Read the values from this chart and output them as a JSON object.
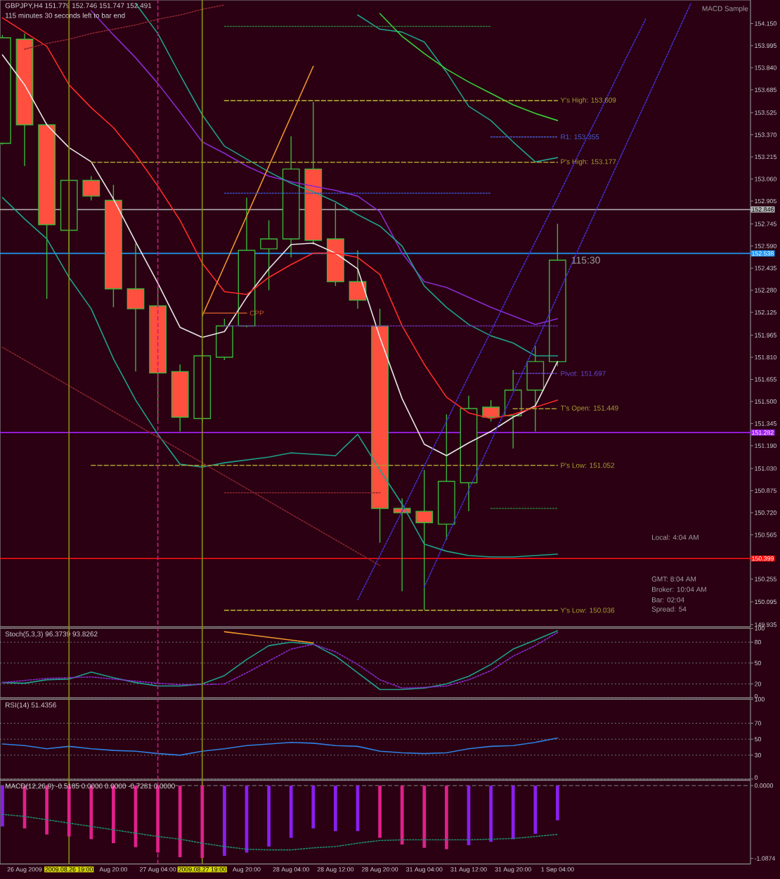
{
  "chart_data": [
    {
      "type": "candlestick",
      "title": "GBPJPY,H4  151.779 152.746 151.747 152.491",
      "subtitle": "115 minutes 30 seconds left to bar end",
      "categories": [
        null,
        null,
        null,
        null,
        null,
        null,
        null,
        null,
        null,
        null,
        null,
        null,
        null,
        null,
        null,
        null,
        null,
        null,
        null,
        null,
        null,
        null,
        null,
        null,
        null,
        null,
        null,
        null,
        null,
        null,
        null,
        null,
        null,
        null
      ],
      "ohlc": [
        [
          153.31,
          154.07,
          153.3,
          154.05
        ],
        [
          154.04,
          154.08,
          153.15,
          153.44
        ],
        [
          153.44,
          153.45,
          152.22,
          152.74
        ],
        [
          152.7,
          153.27,
          152.54,
          153.05
        ],
        [
          153.05,
          153.08,
          152.91,
          152.94
        ],
        [
          152.91,
          153.02,
          152.16,
          152.29
        ],
        [
          152.29,
          152.61,
          151.71,
          152.15
        ],
        [
          152.17,
          152.3,
          151.36,
          151.7
        ],
        [
          151.71,
          151.76,
          151.29,
          151.39
        ],
        [
          151.38,
          151.86,
          151.35,
          151.82
        ],
        [
          151.81,
          152.08,
          151.79,
          152.03
        ],
        [
          152.03,
          152.93,
          152.02,
          152.56
        ],
        [
          152.57,
          152.77,
          152.28,
          152.64
        ],
        [
          152.64,
          153.36,
          152.51,
          153.13
        ],
        [
          153.13,
          153.6,
          152.6,
          152.63
        ],
        [
          152.64,
          152.89,
          152.31,
          152.34
        ],
        [
          152.34,
          152.56,
          152.15,
          152.21
        ],
        [
          152.03,
          152.15,
          150.51,
          150.75
        ],
        [
          150.75,
          150.82,
          150.17,
          150.72
        ],
        [
          150.73,
          151.02,
          150.04,
          150.65
        ],
        [
          150.64,
          151.41,
          150.53,
          150.94
        ],
        [
          150.93,
          151.54,
          150.73,
          151.45
        ],
        [
          151.46,
          151.51,
          151.36,
          151.39
        ],
        [
          151.4,
          151.72,
          151.17,
          151.58
        ],
        [
          151.58,
          151.89,
          151.29,
          151.78
        ],
        [
          151.779,
          152.746,
          151.747,
          152.491
        ],
        null,
        null,
        null,
        null,
        null,
        null,
        null,
        null
      ],
      "color": "#3cb43c",
      "colors": [
        "#2a0012",
        "#ff4f3f",
        "#ff4f3f",
        "#2a0012",
        "#ff4f3f",
        "#ff4f3f",
        "#ff4f3f",
        "#ff4f3f",
        "#ff4f3f",
        "#2a0012",
        "#2a0012",
        "#2a0012",
        "#2a0012",
        "#2a0012",
        "#ff4f3f",
        "#ff4f3f",
        "#ff4f3f",
        "#ff4f3f",
        "#ff4f3f",
        "#ff4f3f",
        "#2a0012",
        "#2a0012",
        "#ff4f3f",
        "#2a0012",
        "#2a0012",
        "#2a0012",
        null,
        null,
        null,
        null,
        null,
        null,
        null,
        null
      ],
      "series": [
        {
          "type": "line",
          "color": "#e8e8e8",
          "values": [
            153.93,
            153.72,
            153.44,
            153.28,
            153.18,
            152.92,
            152.62,
            152.33,
            152.02,
            151.95,
            151.99,
            152.23,
            152.43,
            152.6,
            152.61,
            152.54,
            152.43,
            151.95,
            151.52,
            151.2,
            151.12,
            151.21,
            151.29,
            151.39,
            151.47,
            151.78,
            null,
            null,
            null,
            null,
            null,
            null,
            null,
            null
          ]
        },
        {
          "type": "line",
          "color": "#ff2a2a",
          "values": [
            154.19,
            154.09,
            153.99,
            153.72,
            153.56,
            153.42,
            153.23,
            153.01,
            152.77,
            152.47,
            152.27,
            152.25,
            152.37,
            152.46,
            152.54,
            152.54,
            152.51,
            152.39,
            152.03,
            151.76,
            151.53,
            151.42,
            151.38,
            151.41,
            151.46,
            151.51,
            null,
            null,
            null,
            null,
            null,
            null,
            null,
            null
          ]
        },
        {
          "type": "line",
          "color": "#8a2ad0",
          "values": [
            null,
            null,
            null,
            null,
            154.24,
            154.07,
            153.91,
            153.73,
            153.53,
            153.32,
            153.24,
            153.15,
            153.08,
            153.04,
            153.01,
            152.98,
            152.94,
            152.83,
            152.54,
            152.34,
            152.3,
            152.23,
            152.16,
            152.1,
            152.04,
            152.08,
            null,
            null,
            null,
            null,
            null,
            null,
            null,
            null
          ]
        },
        {
          "type": "line",
          "color": "#1fa08c",
          "values": [
            null,
            null,
            null,
            null,
            null,
            null,
            null,
            null,
            null,
            null,
            null,
            null,
            null,
            null,
            null,
            null,
            154.21,
            154.11,
            154.09,
            154.02,
            153.81,
            153.57,
            153.47,
            153.32,
            153.18,
            153.21,
            null,
            null,
            null,
            null,
            null,
            null,
            null,
            null
          ]
        },
        {
          "type": "line",
          "color": "#1fa08c",
          "values": [
            null,
            null,
            null,
            null,
            null,
            null,
            154.29,
            154.08,
            153.79,
            153.51,
            153.29,
            153.2,
            153.11,
            153.03,
            152.97,
            152.9,
            152.81,
            152.73,
            152.59,
            152.31,
            152.16,
            152.04,
            151.96,
            151.91,
            151.82,
            151.82,
            null,
            null,
            null,
            null,
            null,
            null,
            null,
            null
          ]
        },
        {
          "type": "line",
          "color": "#1fa08c",
          "values": [
            152.93,
            152.78,
            152.64,
            152.37,
            152.15,
            151.8,
            151.51,
            151.27,
            151.06,
            151.04,
            151.07,
            151.09,
            151.11,
            151.14,
            151.13,
            151.12,
            151.27,
            151.02,
            150.78,
            150.5,
            150.45,
            150.42,
            150.41,
            150.41,
            150.42,
            150.43,
            null,
            null,
            null,
            null,
            null,
            null,
            null,
            null
          ]
        },
        {
          "type": "line",
          "color": "#3ad03a",
          "values": [
            null,
            null,
            null,
            null,
            null,
            null,
            null,
            null,
            null,
            null,
            null,
            null,
            null,
            null,
            null,
            null,
            null,
            154.22,
            154.06,
            153.94,
            153.83,
            153.74,
            153.66,
            153.58,
            153.52,
            153.47,
            null,
            null,
            null,
            null,
            null,
            null,
            null,
            null
          ]
        },
        {
          "type": "line",
          "color": "#f0962a",
          "values": [
            null,
            null,
            null,
            null,
            null,
            null,
            null,
            null,
            null,
            152.1,
            152.45,
            152.8,
            153.15,
            153.5,
            153.85,
            null,
            null,
            null,
            null,
            null,
            null,
            null,
            null,
            null,
            null,
            null,
            null,
            null,
            null,
            null,
            null,
            null,
            null,
            null
          ]
        },
        {
          "type": "line",
          "name": "Y's High: 153.609",
          "color": "#a89c30",
          "line_style": "dashed",
          "values": [
            null,
            null,
            null,
            null,
            null,
            null,
            null,
            null,
            null,
            null,
            153.609,
            153.609,
            153.609,
            153.609,
            153.609,
            153.609,
            153.609,
            153.609,
            153.609,
            153.609,
            153.609,
            153.609,
            153.609,
            153.609,
            153.609,
            153.609,
            null,
            null,
            null,
            null,
            null,
            null,
            null,
            null
          ]
        },
        {
          "type": "line",
          "name": "R1: 153.355",
          "color": "#4a5ed0",
          "line_style": "dotted",
          "values": [
            null,
            null,
            null,
            null,
            null,
            null,
            null,
            null,
            null,
            null,
            null,
            null,
            null,
            null,
            null,
            null,
            null,
            null,
            null,
            null,
            null,
            null,
            153.355,
            153.355,
            153.355,
            153.355,
            null,
            null,
            null,
            null,
            null,
            null,
            null,
            null
          ]
        },
        {
          "type": "line",
          "name": "P's High: 153.177",
          "color": "#a89c30",
          "line_style": "dashed",
          "values": [
            null,
            null,
            null,
            null,
            153.177,
            153.177,
            153.177,
            153.177,
            153.177,
            153.177,
            153.177,
            153.177,
            153.177,
            153.177,
            153.177,
            153.177,
            153.177,
            153.177,
            153.177,
            153.177,
            153.177,
            153.177,
            153.177,
            153.177,
            153.177,
            153.177,
            null,
            null,
            null,
            null,
            null,
            null,
            null,
            null
          ]
        },
        {
          "type": "line",
          "name": "Pivot: 151.697",
          "color": "#6a46d8",
          "line_style": "dotted",
          "values": [
            null,
            null,
            null,
            null,
            null,
            null,
            null,
            null,
            null,
            null,
            null,
            null,
            null,
            null,
            null,
            null,
            null,
            null,
            null,
            null,
            null,
            null,
            null,
            151.697,
            151.697,
            151.697,
            null,
            null,
            null,
            null,
            null,
            null,
            null,
            null
          ]
        },
        {
          "type": "line",
          "name": "T's Open: 151.449",
          "color": "#a89c30",
          "line_style": "dashed",
          "values": [
            null,
            null,
            null,
            null,
            null,
            null,
            null,
            null,
            null,
            null,
            null,
            null,
            null,
            null,
            null,
            null,
            null,
            null,
            null,
            null,
            null,
            null,
            null,
            151.449,
            151.449,
            151.449,
            null,
            null,
            null,
            null,
            null,
            null,
            null,
            null
          ]
        },
        {
          "type": "line",
          "name": "P's Low: 151.052",
          "color": "#a89c30",
          "line_style": "dashed",
          "values": [
            null,
            null,
            null,
            null,
            151.052,
            151.052,
            151.052,
            151.052,
            151.052,
            151.052,
            151.052,
            151.052,
            151.052,
            151.052,
            151.052,
            151.052,
            151.052,
            151.052,
            151.052,
            151.052,
            151.052,
            151.052,
            151.052,
            151.052,
            151.052,
            151.052,
            null,
            null,
            null,
            null,
            null,
            null,
            null,
            null
          ]
        },
        {
          "type": "line",
          "name": "Y's Low: 150.036",
          "color": "#a89c30",
          "line_style": "dashed",
          "values": [
            null,
            null,
            null,
            null,
            null,
            null,
            null,
            null,
            null,
            null,
            150.036,
            150.036,
            150.036,
            150.036,
            150.036,
            150.036,
            150.036,
            150.036,
            150.036,
            150.036,
            150.036,
            150.036,
            150.036,
            150.036,
            150.036,
            150.036,
            null,
            null,
            null,
            null,
            null,
            null,
            null,
            null
          ]
        },
        {
          "type": "line",
          "name": "CPP",
          "color": "#c0542a",
          "values": [
            null,
            null,
            null,
            null,
            null,
            null,
            null,
            null,
            null,
            152.12,
            152.12,
            152.12,
            null,
            null,
            null,
            null,
            null,
            null,
            null,
            null,
            null,
            null,
            null,
            null,
            null,
            null,
            null,
            null,
            null,
            null,
            null,
            null,
            null,
            null
          ]
        },
        {
          "type": "line",
          "color": "#2a7a3a",
          "line_style": "dotted",
          "values": [
            null,
            null,
            null,
            null,
            null,
            null,
            null,
            null,
            null,
            null,
            154.13,
            154.13,
            154.13,
            154.13,
            154.13,
            154.13,
            154.13,
            154.13,
            154.13,
            154.13,
            154.13,
            154.13,
            154.13,
            null,
            null,
            null,
            null,
            null,
            null,
            null,
            null,
            null,
            null,
            null
          ]
        },
        {
          "type": "line",
          "color": "#3a4ec0",
          "line_style": "dotted",
          "values": [
            null,
            null,
            null,
            null,
            null,
            null,
            null,
            null,
            null,
            null,
            152.96,
            152.96,
            152.96,
            152.96,
            152.96,
            152.96,
            152.96,
            152.96,
            152.96,
            152.96,
            152.96,
            152.96,
            152.96,
            null,
            null,
            null,
            null,
            null,
            null,
            null,
            null,
            null,
            null,
            null
          ]
        },
        {
          "type": "line",
          "color": "#6a30b0",
          "line_style": "dotted",
          "values": [
            null,
            null,
            null,
            null,
            null,
            null,
            null,
            null,
            null,
            null,
            152.03,
            152.03,
            152.03,
            152.03,
            152.03,
            152.03,
            152.03,
            152.03,
            152.03,
            152.03,
            152.03,
            152.03,
            152.03,
            152.03,
            152.03,
            152.03,
            null,
            null,
            null,
            null,
            null,
            null,
            null,
            null
          ]
        },
        {
          "type": "line",
          "color": "#2a7a3a",
          "line_style": "dotted",
          "values": [
            null,
            null,
            null,
            null,
            null,
            null,
            null,
            null,
            null,
            null,
            null,
            null,
            null,
            null,
            null,
            null,
            null,
            null,
            null,
            null,
            null,
            null,
            150.75,
            150.75,
            150.75,
            150.75,
            null,
            null,
            null,
            null,
            null,
            null,
            null,
            null
          ]
        },
        {
          "type": "line",
          "color": "#8a2430",
          "line_style": "dotted",
          "values": [
            null,
            null,
            null,
            null,
            null,
            null,
            null,
            null,
            null,
            null,
            150.86,
            150.86,
            150.86,
            150.86,
            150.86,
            150.86,
            150.86,
            150.86,
            null,
            null,
            null,
            null,
            null,
            null,
            null,
            null,
            null,
            null,
            null,
            null,
            null,
            null,
            null,
            null
          ]
        },
        {
          "type": "line",
          "color": "#8a2430",
          "line_style": "dotted",
          "values": [
            null,
            153.97,
            154.01,
            154.04,
            154.08,
            154.11,
            154.14,
            154.18,
            154.21,
            154.25,
            154.28,
            null,
            null,
            null,
            null,
            null,
            null,
            null,
            null,
            null,
            null,
            null,
            null,
            null,
            null,
            null,
            null,
            null,
            null,
            null,
            null,
            null,
            null,
            null
          ]
        },
        {
          "type": "line",
          "color": "#8a2430",
          "line_style": "dotted",
          "values": [
            151.88,
            151.79,
            151.7,
            151.61,
            151.52,
            151.43,
            151.34,
            151.25,
            151.16,
            151.07,
            150.98,
            150.89,
            150.8,
            150.71,
            150.62,
            150.53,
            150.44,
            150.35,
            null,
            null,
            null,
            null,
            null,
            null,
            null,
            null,
            null,
            null,
            null,
            null,
            null,
            null,
            null,
            null
          ]
        },
        {
          "type": "line",
          "color": "#4030d8",
          "line_style": "dotted",
          "values": [
            null,
            null,
            null,
            null,
            null,
            null,
            null,
            null,
            null,
            null,
            null,
            null,
            null,
            null,
            null,
            null,
            150.11,
            150.42,
            150.73,
            151.05,
            151.36,
            151.68,
            151.99,
            152.31,
            152.62,
            152.93,
            153.25,
            153.56,
            153.88,
            154.19,
            null,
            null,
            null,
            null
          ]
        },
        {
          "type": "line",
          "color": "#4030d8",
          "line_style": "dotted",
          "values": [
            null,
            null,
            null,
            null,
            null,
            null,
            null,
            null,
            null,
            null,
            null,
            null,
            null,
            null,
            null,
            null,
            null,
            null,
            null,
            150.2,
            150.54,
            150.88,
            151.22,
            151.56,
            151.9,
            152.24,
            152.59,
            152.93,
            153.27,
            153.61,
            153.95,
            154.29,
            null,
            null
          ]
        }
      ],
      "ylim": [
        149.92,
        154.315
      ],
      "yticks": [
        {
          "value": 149.935,
          "label": "149.935"
        },
        {
          "value": 150.095,
          "label": "150.095"
        },
        {
          "value": 150.255,
          "label": "150.255"
        },
        {
          "value": 150.41,
          "label": null
        },
        {
          "value": 150.565,
          "label": "150.565"
        },
        {
          "value": 150.72,
          "label": "150.720"
        },
        {
          "value": 150.875,
          "label": "150.875"
        },
        {
          "value": 151.03,
          "label": "151.030"
        },
        {
          "value": 151.19,
          "label": "151.190"
        },
        {
          "value": 151.345,
          "label": "151.345"
        },
        {
          "value": 151.5,
          "label": "151.500"
        },
        {
          "value": 151.655,
          "label": "151.655"
        },
        {
          "value": 151.81,
          "label": "151.810"
        },
        {
          "value": 151.965,
          "label": "151.965"
        },
        {
          "value": 152.125,
          "label": "152.125"
        },
        {
          "value": 152.28,
          "label": "152.280"
        },
        {
          "value": 152.435,
          "label": "152.435"
        },
        {
          "value": 152.59,
          "label": "152.590"
        },
        {
          "value": 152.745,
          "label": "152.745"
        },
        {
          "value": 152.905,
          "label": "152.905"
        },
        {
          "value": 153.06,
          "label": "153.060"
        },
        {
          "value": 153.215,
          "label": "153.215"
        },
        {
          "value": 153.37,
          "label": "153.370"
        },
        {
          "value": 153.525,
          "label": "153.525"
        },
        {
          "value": 153.685,
          "label": "153.685"
        },
        {
          "value": 153.84,
          "label": "153.840"
        },
        {
          "value": 153.995,
          "label": "153.995"
        },
        {
          "value": 154.15,
          "label": "154.150"
        }
      ],
      "tick_labels": "y",
      "ref_lines": [
        {
          "axis": "y",
          "value": 152.846,
          "label": "152.846",
          "color": "#b4b4b4"
        },
        {
          "axis": "y",
          "value": 152.538,
          "label": "152.538",
          "color": "#2196f3"
        },
        {
          "axis": "y",
          "value": 151.282,
          "label": "151.282",
          "color": "#a020f0"
        },
        {
          "axis": "y",
          "value": 150.399,
          "label": "150.399",
          "color": "#ff1010"
        }
      ],
      "annotations": [
        "MACD Sample",
        "Local: 4:04 AM",
        "GMT: 8:04 AM",
        "Broker: 10:04 AM",
        "Bar: 02:04",
        "Spread: 54",
        {
          "text": "115:30",
          "y": 152.491
        }
      ]
    },
    {
      "type": "line",
      "title": "Stoch(5,3,3) 96.3739 93.8262",
      "categories": [
        null,
        null,
        null,
        null,
        null,
        null,
        null,
        null,
        null,
        null,
        null,
        null,
        null,
        null,
        null,
        null,
        null,
        null,
        null,
        null,
        null,
        null,
        null,
        null,
        null,
        null,
        null,
        null,
        null,
        null,
        null,
        null,
        null,
        null
      ],
      "series": [
        {
          "color": "#1fa08c",
          "values": [
            22,
            21,
            26,
            27,
            37,
            29,
            22,
            17,
            17,
            20,
            32,
            55,
            75,
            80,
            77,
            60,
            36,
            12,
            12,
            14,
            20,
            31,
            48,
            70,
            83,
            96.3739,
            null,
            null,
            null,
            null,
            null,
            null,
            null,
            null
          ]
        },
        {
          "color": "#8a2ad0",
          "line_style": "dotted",
          "values": [
            22,
            25,
            28,
            29,
            30,
            27,
            24,
            21,
            19,
            19,
            20,
            36,
            53,
            70,
            77,
            66,
            48,
            26,
            14,
            15,
            17,
            26,
            39,
            60,
            75,
            93.8262,
            null,
            null,
            null,
            null,
            null,
            null,
            null,
            null
          ]
        },
        {
          "color": "#f0962a",
          "values": [
            null,
            null,
            null,
            null,
            null,
            null,
            null,
            null,
            null,
            null,
            95,
            91,
            87,
            83,
            79,
            null,
            null,
            null,
            null,
            null,
            null,
            null,
            null,
            null,
            null,
            null,
            null,
            null,
            null,
            null,
            null,
            null,
            null,
            null
          ]
        }
      ],
      "ylim": [
        0,
        100
      ],
      "yticks": [
        0,
        20,
        50,
        80,
        100
      ],
      "grid": "y",
      "tick_labels": "y"
    },
    {
      "type": "line",
      "title": "RSI(14) 51.4356",
      "categories": [
        null,
        null,
        null,
        null,
        null,
        null,
        null,
        null,
        null,
        null,
        null,
        null,
        null,
        null,
        null,
        null,
        null,
        null,
        null,
        null,
        null,
        null,
        null,
        null,
        null,
        null,
        null,
        null,
        null,
        null,
        null,
        null,
        null,
        null
      ],
      "series": [
        {
          "color": "#2f7fe0",
          "values": [
            44,
            42,
            38,
            41,
            38,
            36,
            35,
            32,
            30,
            35,
            38,
            42,
            44,
            46,
            45,
            42,
            41,
            35,
            33,
            32,
            33,
            38,
            41,
            42,
            46,
            51.4356,
            null,
            null,
            null,
            null,
            null,
            null,
            null,
            null
          ]
        }
      ],
      "ylim": [
        0,
        100
      ],
      "yticks": [
        0,
        30,
        50,
        70,
        100
      ],
      "grid": "y",
      "tick_labels": "y"
    },
    {
      "type": "bar",
      "title": "MACD(12,26,9) -0.5185 0.0000 0.0000 -0.7281 0.0000",
      "categories": [
        null,
        "26 Aug 2009",
        null,
        "2009.08.26 19:00",
        null,
        "Aug 20:00",
        null,
        "27 Aug 04:00",
        null,
        "2009.08.27 19:00",
        null,
        "Aug 20:00",
        null,
        "28 Aug 04:00",
        null,
        "28 Aug 12:00",
        null,
        "28 Aug 20:00",
        null,
        "31 Aug 04:00",
        null,
        "31 Aug 12:00",
        null,
        "31 Aug 20:00",
        null,
        "1 Sep 04:00",
        null,
        null,
        null,
        null,
        null,
        null,
        null,
        null
      ],
      "series": [
        {
          "type": "bar",
          "values": [
            -0.61,
            -0.64,
            -0.73,
            -0.76,
            -0.8,
            -0.86,
            -0.92,
            -1.0,
            -1.07,
            -1.08,
            -1.05,
            -1.0,
            -0.91,
            -0.78,
            -0.64,
            -0.68,
            -0.68,
            -0.78,
            -0.88,
            -0.93,
            -0.95,
            -0.89,
            -0.84,
            -0.8,
            -0.72,
            -0.5185,
            null,
            null,
            null,
            null,
            null,
            null,
            null,
            null
          ],
          "colors": [
            "#8a1ef0",
            "#e0208a",
            "#e0208a",
            "#e0208a",
            "#e0208a",
            "#e0208a",
            "#e0208a",
            "#e0208a",
            "#e0208a",
            "#e0208a",
            "#8a1ef0",
            "#8a1ef0",
            "#8a1ef0",
            "#8a1ef0",
            "#8a1ef0",
            "#8a1ef0",
            "#8a1ef0",
            "#e0208a",
            "#e0208a",
            "#e0208a",
            "#e0208a",
            "#8a1ef0",
            "#8a1ef0",
            "#8a1ef0",
            "#8a1ef0",
            "#8a1ef0",
            null,
            null,
            null,
            null,
            null,
            null,
            null,
            null
          ]
        },
        {
          "type": "line",
          "color": "#1f8a6a",
          "line_style": "dotted",
          "values": [
            -0.43,
            -0.46,
            -0.51,
            -0.56,
            -0.61,
            -0.66,
            -0.71,
            -0.76,
            -0.8,
            -0.86,
            -0.91,
            -0.95,
            -0.96,
            -0.96,
            -0.93,
            -0.91,
            -0.86,
            -0.82,
            -0.81,
            -0.81,
            -0.81,
            -0.81,
            -0.8,
            -0.79,
            -0.76,
            -0.7281,
            null,
            null,
            null,
            null,
            null,
            null,
            null,
            null
          ]
        }
      ],
      "ylim": [
        -1.17,
        0.08
      ],
      "yticks": [
        {
          "value": 0,
          "label": "0.0000"
        },
        {
          "value": -1.0874,
          "label": "-1.0874"
        }
      ],
      "ref_lines": [
        {
          "axis": "y",
          "value": 0,
          "color": "#5a5a5a",
          "line_style": "dashed"
        },
        {
          "axis": "x",
          "value": "2009.08.26 19:00",
          "color": "#8c8c10"
        },
        {
          "axis": "x",
          "value": "2009.08.27 19:00",
          "color": "#8c8c10"
        },
        {
          "axis": "x",
          "value": "27 Aug 04:00",
          "color": "#c0207a",
          "line_style": "dashed"
        }
      ]
    }
  ]
}
